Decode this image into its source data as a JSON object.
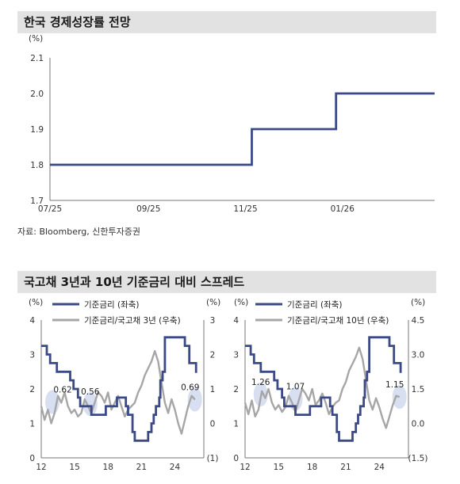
{
  "titles": {
    "panel1": "한국 경제성장률 전망",
    "panel2": "국고채 3년과 10년 기준금리 대비 스프레드"
  },
  "source": "자료: Bloomberg, 신한투자증권",
  "colors": {
    "navy": "#3b4a86",
    "gray": "#a6a6a6",
    "highlight": "#c9d4ec"
  },
  "chart_data": [
    {
      "type": "line",
      "ylabel": "(%)",
      "ylim": [
        1.7,
        2.1
      ],
      "yticks": [
        "2.1",
        "2.0",
        "1.9",
        "1.8",
        "1.7"
      ],
      "xticks": [
        "07/25",
        "09/25",
        "11/25",
        "01/26"
      ],
      "series": [
        {
          "step": true,
          "x": [
            "2025-07-01",
            "2025-11-05",
            "2025-11-05",
            "2025-12-28",
            "2025-12-28",
            "2026-02-28"
          ],
          "values": [
            1.8,
            1.8,
            1.9,
            1.9,
            2.0,
            2.0
          ]
        }
      ]
    },
    {
      "type": "line",
      "ylabel_left": "(%)",
      "ylabel_right": "(%)",
      "ylim_left": [
        0,
        4
      ],
      "ylim_right": [
        -1,
        3
      ],
      "yticks_left": [
        "4",
        "3",
        "2",
        "1",
        "0"
      ],
      "yticks_right": [
        "3",
        "2",
        "1",
        "0",
        "(1)"
      ],
      "xticks": [
        "12",
        "15",
        "18",
        "21",
        "24"
      ],
      "series": [
        {
          "name": "기준금리 (좌축)",
          "axis": "left",
          "step": true,
          "x": [
            2012.0,
            2012.5,
            2012.8,
            2013.4,
            2014.6,
            2014.9,
            2015.3,
            2015.5,
            2016.5,
            2017.8,
            2018.8,
            2019.6,
            2019.8,
            2020.2,
            2020.4,
            2021.6,
            2021.9,
            2022.1,
            2022.3,
            2022.6,
            2022.7,
            2022.9,
            2023.1,
            2024.7,
            2024.9,
            2025.3,
            2025.9
          ],
          "values": [
            3.25,
            3.0,
            2.75,
            2.5,
            2.25,
            2.0,
            1.75,
            1.5,
            1.25,
            1.5,
            1.75,
            1.5,
            1.25,
            0.75,
            0.5,
            0.75,
            1.0,
            1.25,
            1.5,
            1.75,
            2.25,
            2.5,
            3.5,
            3.5,
            3.25,
            2.75,
            2.5
          ]
        },
        {
          "name": "기준금리/국고채 3년 (우축)",
          "axis": "right",
          "x": [
            2012.0,
            2012.3,
            2012.6,
            2012.9,
            2013.2,
            2013.5,
            2013.8,
            2014.1,
            2014.4,
            2014.7,
            2015.0,
            2015.3,
            2015.6,
            2015.9,
            2016.2,
            2016.5,
            2016.8,
            2017.1,
            2017.4,
            2017.7,
            2018.0,
            2018.3,
            2018.6,
            2018.9,
            2019.2,
            2019.5,
            2019.8,
            2020.1,
            2020.4,
            2020.7,
            2021.0,
            2021.3,
            2021.6,
            2021.9,
            2022.2,
            2022.5,
            2022.8,
            2023.1,
            2023.4,
            2023.7,
            2024.0,
            2024.3,
            2024.6,
            2024.9,
            2025.2,
            2025.5,
            2025.8
          ],
          "values": [
            0.5,
            0.1,
            0.4,
            0.0,
            0.3,
            0.8,
            0.6,
            0.9,
            0.5,
            0.3,
            0.4,
            0.2,
            0.3,
            0.7,
            0.5,
            0.3,
            0.6,
            0.9,
            0.8,
            0.6,
            0.9,
            0.4,
            0.6,
            0.8,
            0.5,
            0.2,
            0.4,
            0.5,
            0.6,
            0.9,
            1.1,
            1.4,
            1.6,
            1.8,
            2.1,
            1.8,
            1.2,
            0.6,
            0.3,
            0.7,
            0.4,
            0.0,
            -0.3,
            0.1,
            0.5,
            0.8,
            0.69
          ]
        }
      ],
      "annotations": [
        "0.62",
        "0.56",
        "0.69"
      ]
    },
    {
      "type": "line",
      "ylabel_left": "(%)",
      "ylabel_right": "(%)",
      "ylim_left": [
        0,
        4
      ],
      "ylim_right": [
        -1.5,
        4.5
      ],
      "yticks_left": [
        "4",
        "3",
        "2",
        "1",
        "0"
      ],
      "yticks_right": [
        "4.5",
        "3.0",
        "1.5",
        "0.0",
        "(1.5)"
      ],
      "xticks": [
        "12",
        "15",
        "18",
        "21",
        "24"
      ],
      "series": [
        {
          "name": "기준금리 (좌축)",
          "axis": "left",
          "step": true,
          "x": [
            2012.0,
            2012.5,
            2012.8,
            2013.4,
            2014.6,
            2014.9,
            2015.3,
            2015.5,
            2016.5,
            2017.8,
            2018.8,
            2019.6,
            2019.8,
            2020.2,
            2020.4,
            2021.6,
            2021.9,
            2022.1,
            2022.3,
            2022.6,
            2022.7,
            2022.9,
            2023.1,
            2024.7,
            2024.9,
            2025.3,
            2025.9
          ],
          "values": [
            3.25,
            3.0,
            2.75,
            2.5,
            2.25,
            2.0,
            1.75,
            1.5,
            1.25,
            1.5,
            1.75,
            1.5,
            1.25,
            0.75,
            0.5,
            0.75,
            1.0,
            1.25,
            1.5,
            1.75,
            2.25,
            2.5,
            3.5,
            3.5,
            3.25,
            2.75,
            2.5
          ]
        },
        {
          "name": "기준금리/국고채 10년 (우축)",
          "axis": "right",
          "x": [
            2012.0,
            2012.3,
            2012.6,
            2012.9,
            2013.2,
            2013.5,
            2013.8,
            2014.1,
            2014.4,
            2014.7,
            2015.0,
            2015.3,
            2015.6,
            2015.9,
            2016.2,
            2016.5,
            2016.8,
            2017.1,
            2017.4,
            2017.7,
            2018.0,
            2018.3,
            2018.6,
            2018.9,
            2019.2,
            2019.5,
            2019.8,
            2020.1,
            2020.4,
            2020.7,
            2021.0,
            2021.3,
            2021.6,
            2021.9,
            2022.2,
            2022.5,
            2022.8,
            2023.1,
            2023.4,
            2023.7,
            2024.0,
            2024.3,
            2024.6,
            2024.9,
            2025.2,
            2025.5,
            2025.8
          ],
          "values": [
            0.9,
            0.4,
            1.0,
            0.3,
            0.6,
            1.4,
            1.1,
            1.5,
            0.9,
            0.6,
            0.8,
            0.5,
            0.7,
            1.2,
            0.9,
            0.5,
            1.0,
            1.5,
            1.3,
            1.0,
            1.5,
            0.8,
            1.0,
            1.3,
            0.9,
            0.4,
            0.7,
            0.9,
            1.0,
            1.5,
            1.8,
            2.3,
            2.6,
            2.9,
            3.3,
            2.8,
            1.9,
            1.0,
            0.6,
            1.1,
            0.7,
            0.2,
            -0.2,
            0.3,
            0.8,
            1.2,
            1.15
          ]
        }
      ],
      "annotations": [
        "1.26",
        "1.07",
        "1.15"
      ]
    }
  ]
}
